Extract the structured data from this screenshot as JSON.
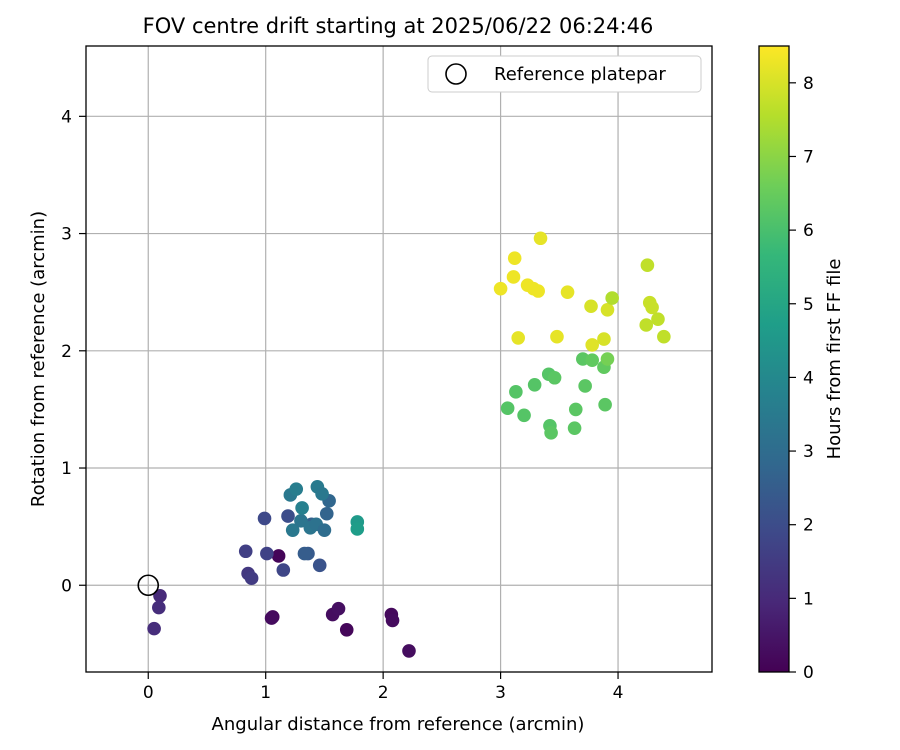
{
  "chart_data": {
    "type": "scatter",
    "title": "FOV centre drift starting at 2025/06/22 06:24:46",
    "xlabel": "Angular distance from reference (arcmin)",
    "ylabel": "Rotation from reference (arcmin)",
    "xlim": [
      -0.53,
      4.8
    ],
    "ylim": [
      -0.74,
      4.6
    ],
    "xticks": [
      0,
      1,
      2,
      3,
      4
    ],
    "yticks": [
      0,
      1,
      2,
      3,
      4
    ],
    "grid": true,
    "legend": {
      "position": "upper right",
      "entries": [
        "Reference platepar"
      ]
    },
    "colorbar": {
      "label": "Hours from first FF file",
      "colormap": "viridis",
      "range": [
        0,
        8.5
      ],
      "ticks": [
        0,
        1,
        2,
        3,
        4,
        5,
        6,
        7,
        8
      ]
    },
    "reference_point": {
      "x": 0,
      "y": 0,
      "label": "Reference platepar"
    },
    "series": [
      {
        "x": [
          1.11,
          1.06,
          1.05,
          1.57,
          1.62,
          1.69,
          2.07,
          2.08,
          2.22,
          0.1,
          0.09,
          0.05,
          0.85,
          0.88,
          0.83,
          1.01,
          1.15,
          0.99,
          1.19,
          1.46,
          1.36,
          1.33,
          1.39,
          1.23,
          1.3,
          1.38,
          1.43,
          1.5,
          1.52,
          1.54,
          1.21,
          1.26,
          1.31,
          1.44,
          1.48,
          1.78,
          1.78,
          3.06,
          3.13,
          3.2,
          3.29,
          3.41,
          3.42,
          3.43,
          3.46,
          3.63,
          3.64,
          3.7,
          3.72,
          3.78,
          3.88,
          3.89,
          3.91,
          3.0,
          3.11,
          3.12,
          3.15,
          3.23,
          3.28,
          3.32,
          3.34,
          3.48,
          3.57,
          3.77,
          3.78,
          3.88,
          3.91,
          3.95,
          4.25,
          4.24,
          4.27,
          4.29,
          4.34,
          4.39
        ],
        "y": [
          0.25,
          -0.27,
          -0.28,
          -0.25,
          -0.2,
          -0.38,
          -0.25,
          -0.3,
          -0.56,
          -0.09,
          -0.19,
          -0.37,
          0.1,
          0.06,
          0.29,
          0.27,
          0.13,
          0.57,
          0.59,
          0.17,
          0.27,
          0.27,
          0.52,
          0.47,
          0.55,
          0.49,
          0.52,
          0.47,
          0.61,
          0.72,
          0.77,
          0.82,
          0.66,
          0.84,
          0.78,
          0.54,
          0.48,
          1.51,
          1.65,
          1.45,
          1.71,
          1.8,
          1.36,
          1.3,
          1.77,
          1.34,
          1.5,
          1.93,
          1.7,
          1.92,
          1.86,
          1.54,
          1.93,
          2.53,
          2.63,
          2.79,
          2.11,
          2.56,
          2.53,
          2.51,
          2.96,
          2.12,
          2.5,
          2.38,
          2.05,
          2.1,
          2.35,
          2.45,
          2.73,
          2.22,
          2.41,
          2.37,
          2.27,
          2.12
        ],
        "hours": [
          0.1,
          0.2,
          0.25,
          0.3,
          0.35,
          0.15,
          0.2,
          0.25,
          0.3,
          1.0,
          1.1,
          1.1,
          1.4,
          1.5,
          1.6,
          1.7,
          1.8,
          1.9,
          2.0,
          2.2,
          2.4,
          2.5,
          2.6,
          3.4,
          3.3,
          3.3,
          3.2,
          3.0,
          2.7,
          2.8,
          3.4,
          3.6,
          3.7,
          3.5,
          3.4,
          4.6,
          4.7,
          6.2,
          6.2,
          6.2,
          6.2,
          6.2,
          6.2,
          6.3,
          6.3,
          6.3,
          6.3,
          6.3,
          6.3,
          6.4,
          6.4,
          6.3,
          6.7,
          8.3,
          8.3,
          8.3,
          8.2,
          8.3,
          8.3,
          8.3,
          8.2,
          8.2,
          8.2,
          8.0,
          8.1,
          8.0,
          8.0,
          7.5,
          7.7,
          7.7,
          7.8,
          7.8,
          7.7,
          7.7
        ]
      }
    ]
  }
}
